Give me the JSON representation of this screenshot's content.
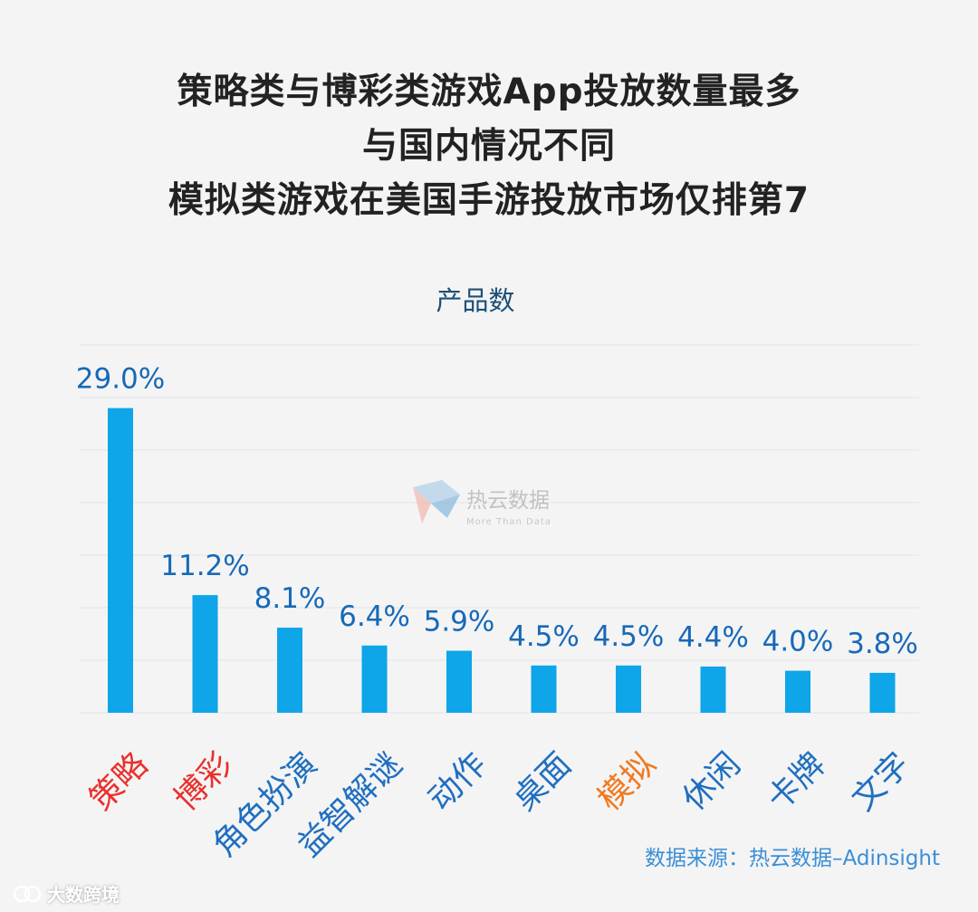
{
  "title_lines": [
    "策略类与博彩类游戏App投放数量最多",
    "与国内情况不同",
    "模拟类游戏在美国手游投放市场仅排第7"
  ],
  "source": "数据来源：热云数据–Adinsight",
  "watermark": {
    "name": "热云数据",
    "tagline": "More Than Data"
  },
  "footer_brand": "大数跨境",
  "colors": {
    "bar": "#0ea5e9",
    "value_label": "#1769b8",
    "category_default": "#1f6fc0",
    "category_highlight_red": "#e8312f",
    "category_highlight_orange": "#ef7a22",
    "chart_title": "#1d4f78",
    "grid": "#dfe3ea"
  },
  "chart_data": {
    "type": "bar",
    "title": "产品数",
    "xlabel": "",
    "ylabel": "",
    "ylim": [
      0,
      32
    ],
    "grid": true,
    "categories": [
      "策略",
      "博彩",
      "角色扮演",
      "益智解谜",
      "动作",
      "桌面",
      "模拟",
      "休闲",
      "卡牌",
      "文字"
    ],
    "values": [
      29.0,
      11.2,
      8.1,
      6.4,
      5.9,
      4.5,
      4.5,
      4.4,
      4.0,
      3.8
    ],
    "value_labels": [
      "29.0%",
      "11.2%",
      "8.1%",
      "6.4%",
      "5.9%",
      "4.5%",
      "4.5%",
      "4.4%",
      "4.0%",
      "3.8%"
    ],
    "category_colors": [
      "#e8312f",
      "#e8312f",
      "#1f6fc0",
      "#1f6fc0",
      "#1f6fc0",
      "#1f6fc0",
      "#ef7a22",
      "#1f6fc0",
      "#1f6fc0",
      "#1f6fc0"
    ]
  }
}
